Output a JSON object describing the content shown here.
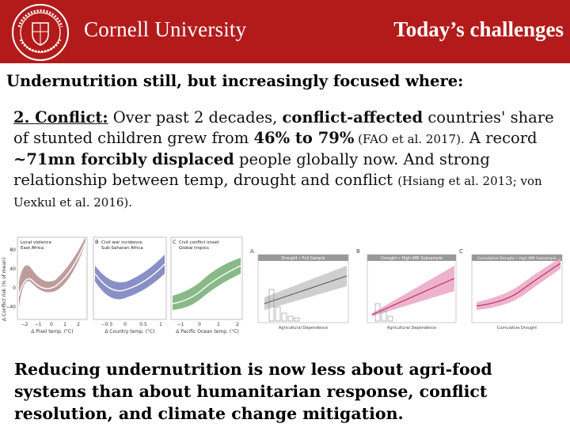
{
  "header": {
    "brand": "Cornell University",
    "title": "Today’s challenges",
    "background": "#b31b1b"
  },
  "subtitle": "Undernutrition still, but increasingly focused where:",
  "paragraph": {
    "num": "2.",
    "label": "Conflict:",
    "t1": " Over past 2 decades, ",
    "b1": "conflict-affected",
    "t2": " countries' share of stunted children grew from ",
    "b2": "46% to 79%",
    "ref1": " (FAO et al. 2017).",
    "t3": " A record ",
    "b3": "~71mn forcibly displaced",
    "t4": " people globally now. And strong relationship between temp, drought and conflict ",
    "ref2": "(Hsiang et al. 2013; von Uexkul et al. 2016)."
  },
  "figure_left": {
    "panels": [
      {
        "title1": "Local violence",
        "title2": "East Africa",
        "xlabel": "Δ Pixel temp. (°C)",
        "ticks": [
          "−2",
          "−1",
          "0",
          "1",
          "2"
        ],
        "color": "#7a2f2f"
      },
      {
        "label": "B",
        "title1": "Civil war incidence",
        "title2": "Sub-Saharan Africa",
        "xlabel": "Δ Country temp. (°C)",
        "ticks": [
          "−0.5",
          "0",
          "0.5",
          "1"
        ],
        "color": "#2f3a8a"
      },
      {
        "label": "C",
        "title1": "Civil conflict onset",
        "title2": "Global tropics",
        "xlabel": "Δ Pacific Ocean temp. (°C)",
        "ticks": [
          "−1",
          "0",
          "1",
          "2"
        ],
        "color": "#2f7a2f"
      }
    ],
    "ylabel": "Δ Conflict risk (% of mean)",
    "yticks": [
      "80",
      "40",
      "0",
      "−40"
    ]
  },
  "figure_right": {
    "panels": [
      {
        "label": "A",
        "title": "Drought • Full Sample",
        "xlabel": "Agricultural Dependence"
      },
      {
        "label": "B",
        "title": "Drought • High IMR Subsample",
        "xlabel": "Agricultural Dependence"
      },
      {
        "label": "C",
        "title": "Cumulative Drought • High IMR Subsample",
        "xlabel": "Cumulative Drought"
      }
    ]
  },
  "conclusion": "Reducing undernutrition is now less about agri-food systems than about humanitarian response, conflict resolution, and climate change mitigation."
}
